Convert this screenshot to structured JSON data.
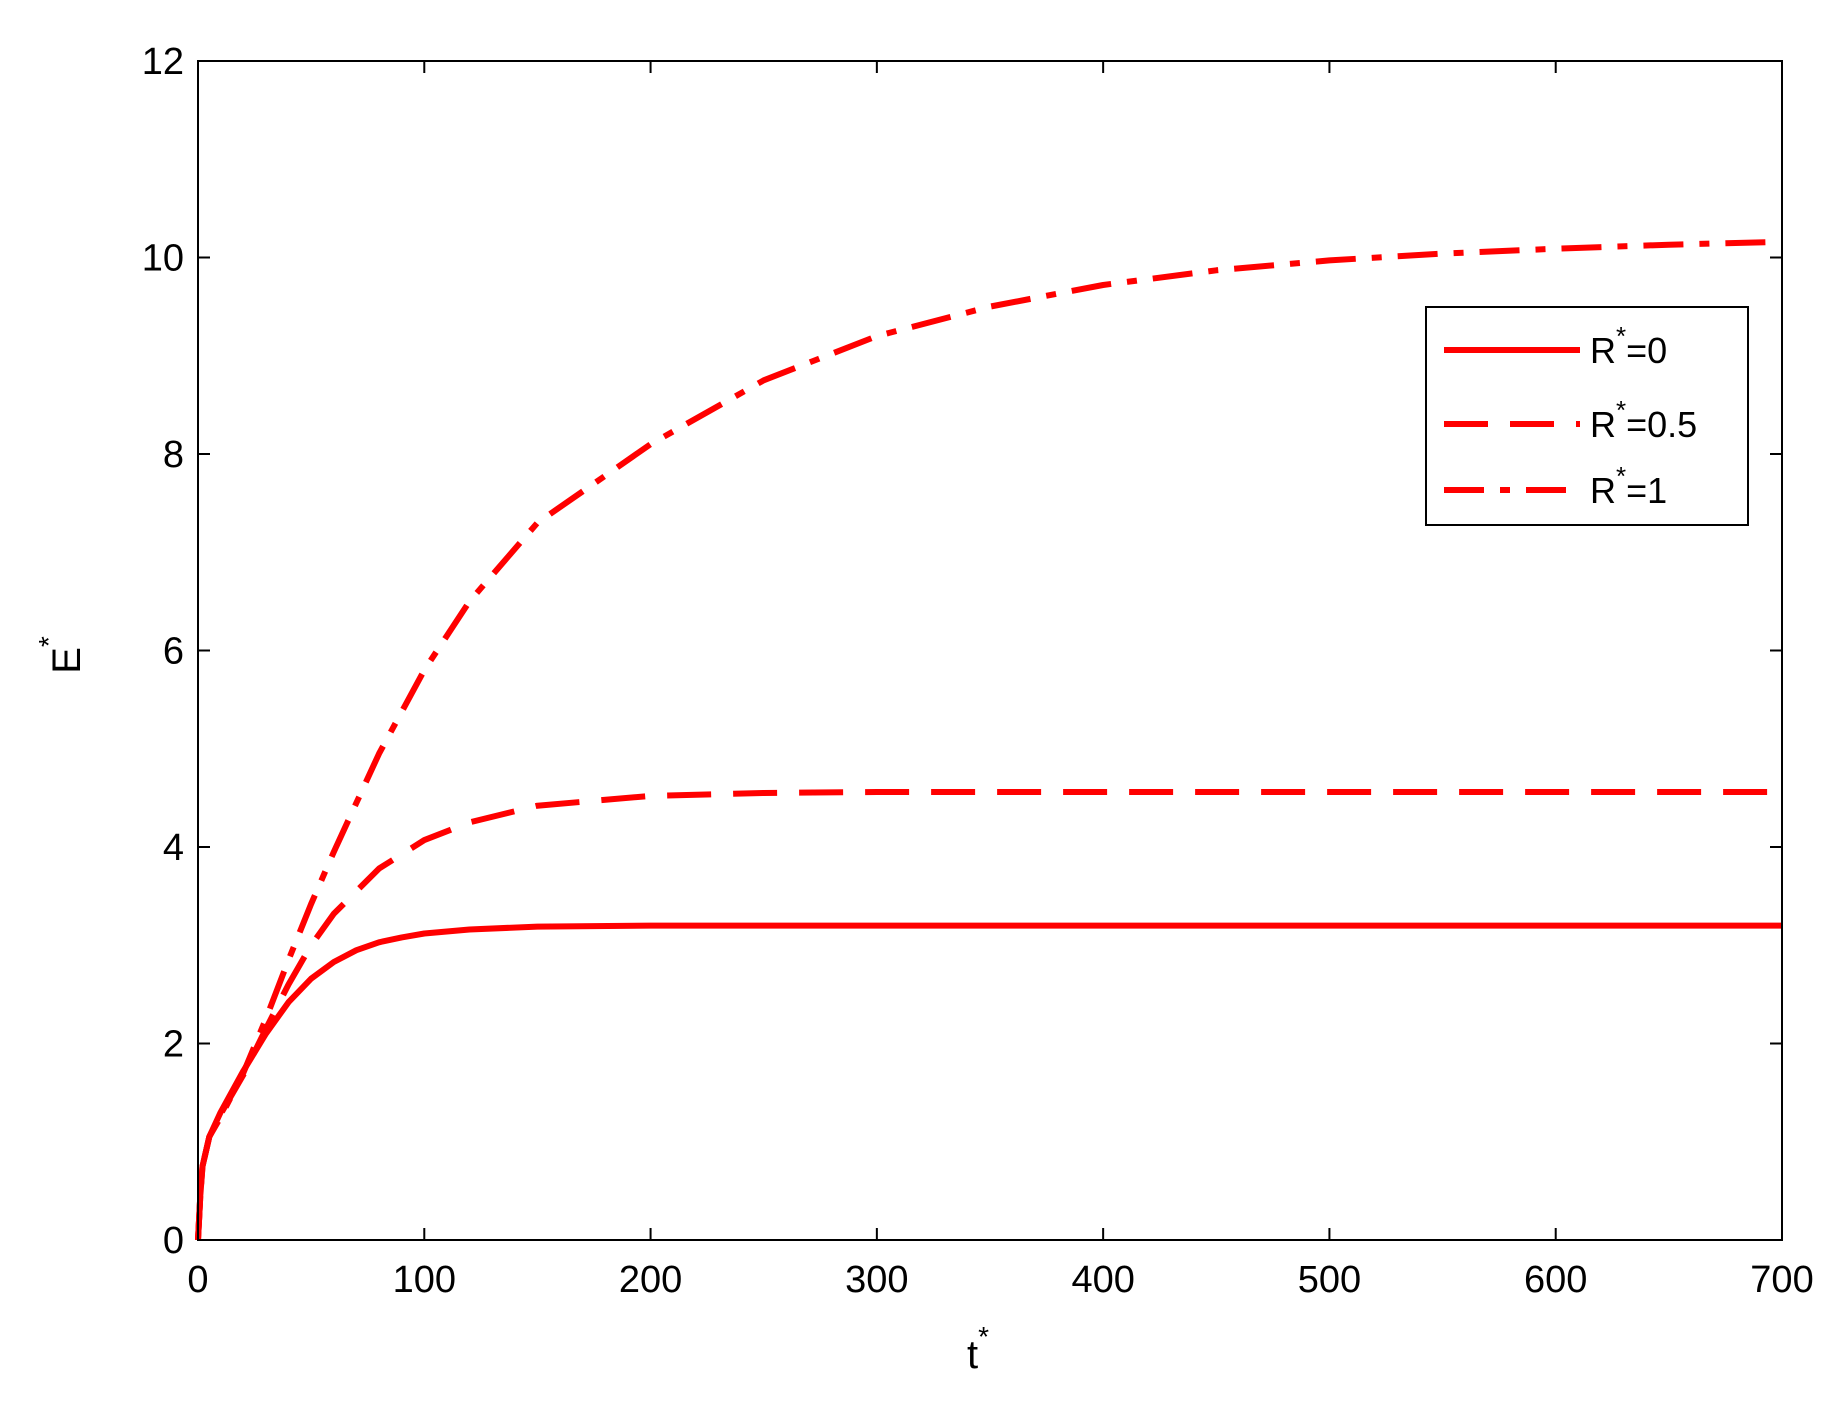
{
  "chart_data": {
    "type": "line",
    "title": "",
    "xlabel": "t",
    "xlabel_sup": "*",
    "ylabel": "E",
    "ylabel_sup": "*",
    "xlim": [
      0,
      700
    ],
    "ylim": [
      0,
      12
    ],
    "xticks": [
      0,
      100,
      200,
      300,
      400,
      500,
      600,
      700
    ],
    "yticks": [
      0,
      2,
      4,
      6,
      8,
      10,
      12
    ],
    "grid": false,
    "box": true,
    "legend_position": "top-right",
    "series_color": "#ff0000",
    "series": [
      {
        "name": "R*=0",
        "legend_base": "R",
        "legend_sup": "*",
        "legend_suffix": "=0",
        "line_style": "solid",
        "x": [
          0,
          1,
          2,
          5,
          10,
          20,
          30,
          40,
          50,
          60,
          70,
          80,
          90,
          100,
          120,
          150,
          200,
          300,
          400,
          500,
          600,
          700
        ],
        "y": [
          0,
          0.45,
          0.75,
          1.05,
          1.3,
          1.72,
          2.1,
          2.42,
          2.66,
          2.83,
          2.95,
          3.03,
          3.08,
          3.12,
          3.16,
          3.19,
          3.2,
          3.2,
          3.2,
          3.2,
          3.2,
          3.2
        ]
      },
      {
        "name": "R*=0.5",
        "legend_base": "R",
        "legend_sup": "*",
        "legend_suffix": "=0.5",
        "line_style": "dashed",
        "x": [
          0,
          1,
          2,
          5,
          10,
          20,
          30,
          40,
          50,
          60,
          80,
          100,
          120,
          150,
          200,
          250,
          300,
          400,
          500,
          600,
          700
        ],
        "y": [
          0,
          0.45,
          0.75,
          1.05,
          1.28,
          1.68,
          2.15,
          2.6,
          3.0,
          3.32,
          3.78,
          4.07,
          4.25,
          4.42,
          4.52,
          4.55,
          4.56,
          4.56,
          4.56,
          4.56,
          4.56
        ]
      },
      {
        "name": "R*=1",
        "legend_base": "R",
        "legend_sup": "*",
        "legend_suffix": "=1",
        "line_style": "dashdot",
        "x": [
          0,
          1,
          2,
          5,
          10,
          20,
          30,
          40,
          50,
          60,
          80,
          100,
          120,
          150,
          200,
          250,
          300,
          350,
          400,
          450,
          500,
          550,
          600,
          650,
          700
        ],
        "y": [
          0,
          0.45,
          0.75,
          1.05,
          1.25,
          1.7,
          2.25,
          2.85,
          3.42,
          3.95,
          4.95,
          5.8,
          6.5,
          7.3,
          8.1,
          8.75,
          9.2,
          9.5,
          9.72,
          9.87,
          9.97,
          10.04,
          10.09,
          10.13,
          10.16
        ]
      }
    ]
  }
}
